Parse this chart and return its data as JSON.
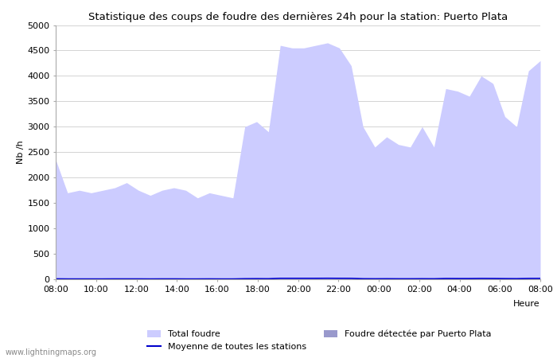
{
  "title": "Statistique des coups de foudre des dernières 24h pour la station: Puerto Plata",
  "xlabel": "Heure",
  "ylabel": "Nb /h",
  "watermark": "www.lightningmaps.org",
  "x_ticks": [
    "08:00",
    "10:00",
    "12:00",
    "14:00",
    "16:00",
    "18:00",
    "20:00",
    "22:00",
    "00:00",
    "02:00",
    "04:00",
    "06:00",
    "08:00"
  ],
  "ylim": [
    0,
    5000
  ],
  "yticks": [
    0,
    500,
    1000,
    1500,
    2000,
    2500,
    3000,
    3500,
    4000,
    4500,
    5000
  ],
  "total_foudre_color": "#ccccff",
  "puerto_plata_color": "#9999cc",
  "moyenne_color": "#0000cc",
  "total_foudre": [
    2350,
    1700,
    1750,
    1700,
    1750,
    1800,
    1900,
    1750,
    1650,
    1750,
    1800,
    1750,
    1600,
    1700,
    1650,
    1600,
    3000,
    3100,
    2900,
    4600,
    4550,
    4550,
    4600,
    4650,
    4550,
    4200,
    3000,
    2600,
    2800,
    2650,
    2600,
    3000,
    2600,
    3750,
    3700,
    3600,
    4000,
    3850,
    3200,
    3000,
    4100,
    4300
  ],
  "puerto_plata": [
    0,
    0,
    0,
    0,
    0,
    0,
    0,
    0,
    0,
    0,
    0,
    0,
    0,
    0,
    0,
    0,
    0,
    0,
    0,
    0,
    0,
    0,
    0,
    0,
    0,
    0,
    0,
    0,
    0,
    0,
    0,
    0,
    0,
    0,
    0,
    0,
    0,
    0,
    0,
    0,
    0,
    0
  ],
  "moyenne": [
    8,
    6,
    6,
    6,
    6,
    7,
    7,
    7,
    6,
    7,
    7,
    6,
    6,
    7,
    6,
    6,
    10,
    11,
    10,
    18,
    18,
    18,
    18,
    19,
    18,
    17,
    10,
    9,
    10,
    9,
    9,
    10,
    9,
    14,
    13,
    13,
    15,
    14,
    12,
    11,
    15,
    16
  ],
  "legend_total_foudre": "Total foudre",
  "legend_moyenne": "Moyenne de toutes les stations",
  "legend_puerto_plata": "Foudre détectée par Puerto Plata",
  "background_color": "#ffffff",
  "grid_color": "#cccccc",
  "fig_width": 7.0,
  "fig_height": 4.5,
  "dpi": 100
}
